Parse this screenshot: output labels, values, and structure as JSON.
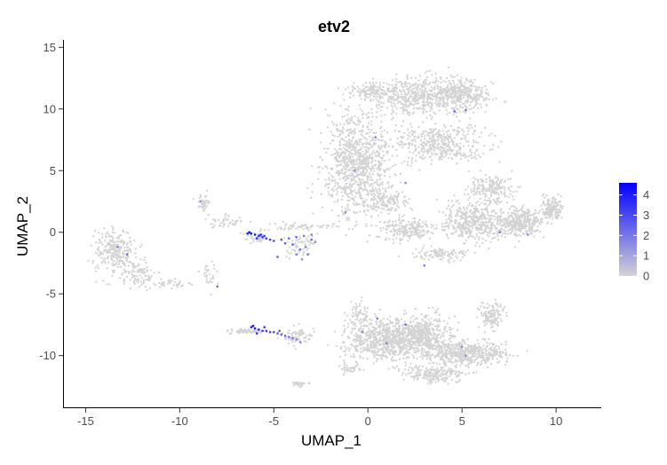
{
  "chart_data": {
    "type": "scatter",
    "title": "etv2",
    "xlabel": "UMAP_1",
    "ylabel": "UMAP_2",
    "xlim": [
      -16.2,
      12.4
    ],
    "ylim": [
      -14.2,
      15.6
    ],
    "x_ticks": [
      -15,
      -10,
      -5,
      0,
      5,
      10
    ],
    "x_tick_labels": [
      "-15",
      "-10",
      "-5",
      "0",
      "5",
      "10"
    ],
    "y_ticks": [
      -10,
      -5,
      0,
      5,
      10,
      15
    ],
    "y_tick_labels": [
      "-10",
      "-5",
      "0",
      "5",
      "10",
      "15"
    ],
    "grid": false,
    "legend": {
      "position": "right",
      "type": "colorbar",
      "range": [
        0,
        4.6
      ],
      "ticks": [
        0,
        1,
        2,
        3,
        4
      ],
      "tick_labels": [
        "0",
        "1",
        "2",
        "3",
        "4"
      ],
      "low_color": "#d3d3d3",
      "high_color": "#0000ff"
    },
    "series": [
      {
        "points": [
          [
            -6.2,
            -0.1,
            4.2
          ],
          [
            -6.0,
            -0.2,
            4.0
          ],
          [
            -5.8,
            -0.3,
            3.8
          ],
          [
            -5.6,
            -0.4,
            3.6
          ],
          [
            -5.4,
            -0.5,
            3.4
          ],
          [
            -5.2,
            -0.6,
            3.2
          ],
          [
            -6.3,
            0.0,
            4.3
          ],
          [
            -6.4,
            -0.1,
            3.9
          ],
          [
            -5.9,
            -0.5,
            3.5
          ],
          [
            -5.7,
            -0.2,
            4.1
          ],
          [
            -5.5,
            -0.3,
            3.0
          ],
          [
            -5.0,
            -0.7,
            2.8
          ],
          [
            -4.6,
            -0.6,
            2.6
          ],
          [
            -4.2,
            -0.5,
            2.4
          ],
          [
            -3.8,
            -0.4,
            2.2
          ],
          [
            -3.4,
            -0.3,
            2.0
          ],
          [
            -3.0,
            -0.2,
            1.8
          ],
          [
            -4.0,
            -1.0,
            2.5
          ],
          [
            -3.6,
            -1.4,
            2.2
          ],
          [
            -3.2,
            -1.8,
            2.0
          ],
          [
            -3.8,
            -1.8,
            1.9
          ],
          [
            -3.0,
            -0.6,
            2.3
          ],
          [
            -3.3,
            -1.2,
            1.7
          ],
          [
            -4.4,
            -0.9,
            2.6
          ],
          [
            -2.8,
            -0.8,
            1.6
          ],
          [
            -3.5,
            -2.2,
            1.5
          ],
          [
            -6.2,
            -7.7,
            4.0
          ],
          [
            -6.0,
            -7.8,
            3.9
          ],
          [
            -5.8,
            -7.9,
            3.7
          ],
          [
            -5.6,
            -8.0,
            3.5
          ],
          [
            -5.4,
            -8.0,
            3.3
          ],
          [
            -5.2,
            -8.1,
            3.1
          ],
          [
            -5.0,
            -8.1,
            2.9
          ],
          [
            -4.8,
            -8.2,
            2.7
          ],
          [
            -4.6,
            -8.3,
            2.5
          ],
          [
            -4.4,
            -8.4,
            2.3
          ],
          [
            -4.2,
            -8.5,
            2.1
          ],
          [
            -4.0,
            -8.6,
            1.9
          ],
          [
            -3.8,
            -8.7,
            1.7
          ],
          [
            -6.1,
            -7.6,
            4.4
          ],
          [
            -5.9,
            -8.2,
            3.6
          ],
          [
            -5.5,
            -7.7,
            3.4
          ],
          [
            -4.7,
            -8.0,
            2.8
          ],
          [
            -3.6,
            -8.9,
            1.5
          ],
          [
            0.5,
            -7.0,
            2.0
          ],
          [
            2.0,
            -7.5,
            2.2
          ],
          [
            1.0,
            -9.0,
            1.8
          ],
          [
            -0.3,
            -8.1,
            1.6
          ],
          [
            4.6,
            9.8,
            2.4
          ],
          [
            5.2,
            9.9,
            2.0
          ],
          [
            0.4,
            7.7,
            1.8
          ],
          [
            -0.7,
            5.0,
            1.5
          ],
          [
            2.0,
            4.0,
            1.5
          ],
          [
            7.0,
            0.0,
            2.0
          ],
          [
            8.5,
            -0.2,
            1.6
          ],
          [
            3.0,
            -2.7,
            1.8
          ],
          [
            -4.8,
            -2.0,
            2.6
          ],
          [
            -12.8,
            -1.8,
            2.2
          ],
          [
            -13.3,
            -1.2,
            1.8
          ],
          [
            -8.0,
            -4.4,
            2.2
          ],
          [
            -1.2,
            1.6,
            1.5
          ],
          [
            5.0,
            -9.3,
            1.5
          ],
          [
            5.2,
            -10.0,
            1.6
          ],
          [
            -8.9,
            2.5,
            1.4
          ]
        ]
      }
    ]
  }
}
